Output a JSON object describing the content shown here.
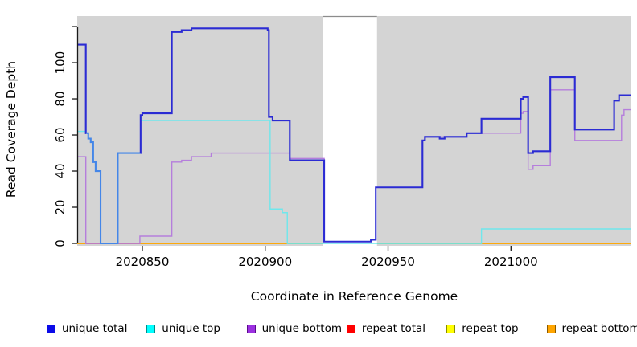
{
  "axes": {
    "x_label": "Coordinate in Reference Genome",
    "y_label": "Read Coverage Depth"
  },
  "legend": {
    "items": [
      {
        "label": "unique total",
        "fill": "#0B0BE8",
        "border": "#000080"
      },
      {
        "label": "unique top",
        "fill": "#00FFFF",
        "border": "#008B8B"
      },
      {
        "label": "unique bottom",
        "fill": "#9B30E0",
        "border": "#5A0B8C"
      },
      {
        "label": "repeat total",
        "fill": "#FF0000",
        "border": "#8B0000"
      },
      {
        "label": "repeat top",
        "fill": "#FFFF00",
        "border": "#8B8B00"
      },
      {
        "label": "repeat bottom",
        "fill": "#FFA500",
        "border": "#8B5A00"
      }
    ]
  },
  "chart_data": {
    "type": "line",
    "title": "",
    "xlabel": "Coordinate in Reference Genome",
    "ylabel": "Read Coverage Depth",
    "xlim": [
      2020823.5,
      2021049
    ],
    "ylim": [
      0,
      125.8
    ],
    "grid": "off",
    "legend_position": "bottom",
    "background": "#D4D4D4",
    "x_ticks": {
      "values": [
        2020850,
        2020900,
        2020950,
        2021000
      ],
      "labels": [
        "2020850",
        "2020900",
        "2020950",
        "2021000"
      ]
    },
    "y_ticks": {
      "values": [
        0,
        20,
        40,
        60,
        80,
        100,
        120
      ],
      "labels": [
        "0",
        "20",
        "40",
        "60",
        "80",
        "100",
        ""
      ]
    },
    "gap_region": {
      "from": 2020923.5,
      "to": 2020945.5,
      "color": "#FFFFFF",
      "top_border": "#8C8C8C"
    },
    "series": [
      {
        "name": "unique total",
        "color": "#2B2BD3",
        "width": 2.1,
        "end": 2021049,
        "color_segments": [
          {
            "until": 2020827.2,
            "color": "#2B2BD3"
          },
          {
            "until": 2020849.2,
            "color": "#4486E8"
          },
          {
            "until": 2021049,
            "color": "#2B2BD3"
          }
        ],
        "points": [
          [
            2020823.5,
            110
          ],
          [
            2020827,
            61
          ],
          [
            2020828,
            58
          ],
          [
            2020829,
            56
          ],
          [
            2020830,
            45
          ],
          [
            2020831,
            40
          ],
          [
            2020833,
            0
          ],
          [
            2020840,
            50
          ],
          [
            2020849.3,
            71
          ],
          [
            2020850,
            72
          ],
          [
            2020862,
            117
          ],
          [
            2020866,
            118
          ],
          [
            2020870,
            119
          ],
          [
            2020901,
            118
          ],
          [
            2020901.5,
            70
          ],
          [
            2020903,
            68
          ],
          [
            2020910,
            46
          ],
          [
            2020924,
            1
          ],
          [
            2020943,
            2
          ],
          [
            2020945,
            31
          ],
          [
            2020964,
            57
          ],
          [
            2020965,
            59
          ],
          [
            2020971,
            58
          ],
          [
            2020973,
            59
          ],
          [
            2020982,
            61
          ],
          [
            2020988,
            69
          ],
          [
            2021004,
            80
          ],
          [
            2021005,
            81
          ],
          [
            2021007,
            50
          ],
          [
            2021009,
            51
          ],
          [
            2021016,
            92
          ],
          [
            2021026,
            63
          ],
          [
            2021042,
            79
          ],
          [
            2021044,
            82
          ]
        ]
      },
      {
        "name": "unique top",
        "color": "#6FE7EC",
        "width": 1.4,
        "end": 2021049,
        "points": [
          [
            2020823.5,
            62
          ],
          [
            2020827,
            61
          ],
          [
            2020828,
            58
          ],
          [
            2020829,
            56
          ],
          [
            2020830,
            45
          ],
          [
            2020831,
            40
          ],
          [
            2020833,
            0
          ],
          [
            2020840,
            50
          ],
          [
            2020849.3,
            68
          ],
          [
            2020902,
            19
          ],
          [
            2020907,
            17
          ],
          [
            2020909,
            0
          ],
          [
            2020988,
            8
          ]
        ]
      },
      {
        "name": "unique bottom",
        "color": "#B57EDC",
        "width": 1.4,
        "end": 2021049,
        "points": [
          [
            2020823.5,
            48
          ],
          [
            2020827,
            0
          ],
          [
            2020849,
            4
          ],
          [
            2020862,
            45
          ],
          [
            2020866,
            46
          ],
          [
            2020870,
            48
          ],
          [
            2020878,
            50
          ],
          [
            2020910,
            47
          ],
          [
            2020924,
            1
          ],
          [
            2020943,
            2
          ],
          [
            2020945,
            31
          ],
          [
            2020964,
            57
          ],
          [
            2020965,
            59
          ],
          [
            2020982,
            61
          ],
          [
            2021004,
            72
          ],
          [
            2021005,
            73
          ],
          [
            2021007,
            41
          ],
          [
            2021009,
            43
          ],
          [
            2021016,
            85
          ],
          [
            2021026,
            57
          ],
          [
            2021045,
            71
          ],
          [
            2021046,
            74
          ]
        ]
      },
      {
        "name": "repeat total",
        "color": "#FF0000",
        "width": 1.6,
        "end": 2021049,
        "points": [
          [
            2020823.5,
            0
          ]
        ]
      },
      {
        "name": "repeat top",
        "color": "#FFFF00",
        "width": 1.6,
        "end": 2021049,
        "points": [
          [
            2020823.5,
            0
          ]
        ]
      },
      {
        "name": "repeat bottom",
        "color": "#FFA500",
        "width": 1.6,
        "end": 2021049,
        "points": [
          [
            2020823.5,
            0
          ]
        ]
      }
    ],
    "baseline_overlap_segments": [
      {
        "from": 2020827,
        "to": 2020833,
        "color": "#CF6278"
      },
      {
        "from": 2020833,
        "to": 2020840,
        "color": "#4486E8"
      },
      {
        "from": 2020840,
        "to": 2020849,
        "color": "#CF6278"
      },
      {
        "from": 2020909,
        "to": 2020988,
        "color": "#7FCE7F"
      }
    ]
  }
}
